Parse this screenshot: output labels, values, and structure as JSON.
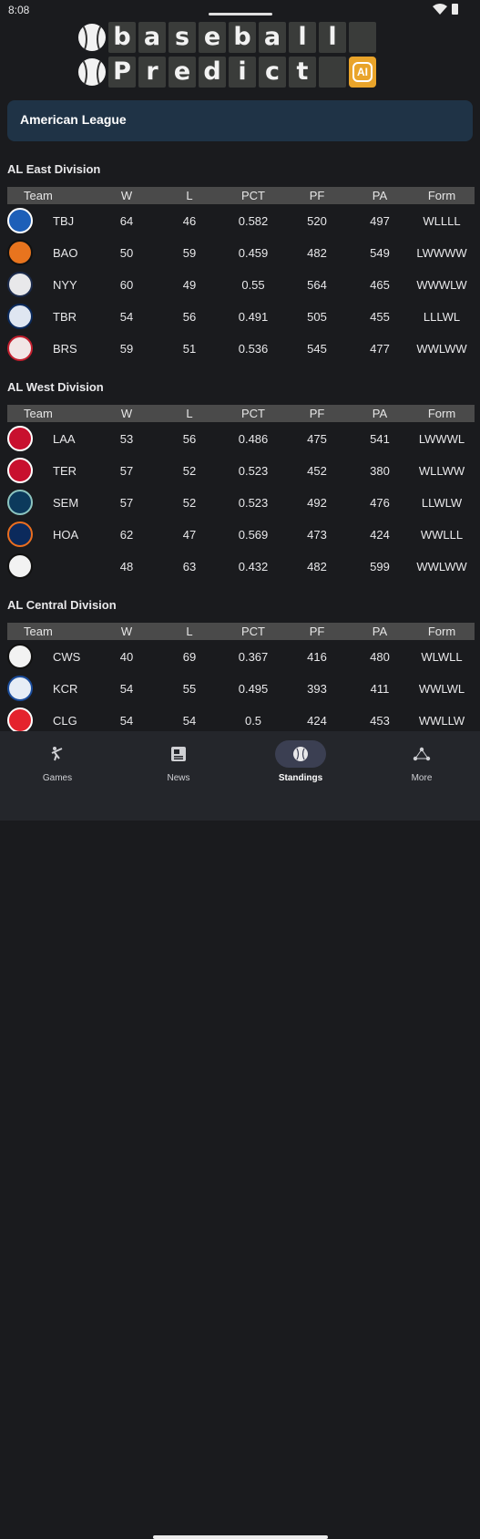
{
  "status": {
    "time": "8:08"
  },
  "logo": {
    "row1": [
      "b",
      "a",
      "s",
      "e",
      "b",
      "a",
      "l",
      "l"
    ],
    "row2": [
      "P",
      "r",
      "e",
      "d",
      "i",
      "c",
      "t"
    ],
    "ai_badge": "AI",
    "badge_color": "#e9a42a"
  },
  "league": {
    "label": "American League",
    "card_color": "#1f3346"
  },
  "columns": [
    "Team",
    "W",
    "L",
    "PCT",
    "PF",
    "PA",
    "Form"
  ],
  "divisions": [
    {
      "title": "AL East Division",
      "teams": [
        {
          "abbr": "TBJ",
          "w": "64",
          "l": "46",
          "pct": "0.582",
          "pf": "520",
          "pa": "497",
          "form": "WLLLL",
          "icon": "blue-jays-logo-icon",
          "logo_bg": "#1d5fb8",
          "logo_fg": "#ffffff"
        },
        {
          "abbr": "BAO",
          "w": "50",
          "l": "59",
          "pct": "0.459",
          "pf": "482",
          "pa": "549",
          "form": "LWWWW",
          "icon": "orioles-logo-icon",
          "logo_bg": "#e8741e",
          "logo_fg": "#111111"
        },
        {
          "abbr": "NYY",
          "w": "60",
          "l": "49",
          "pct": "0.55",
          "pf": "564",
          "pa": "465",
          "form": "WWWLW",
          "icon": "yankees-logo-icon",
          "logo_bg": "#e8e8ea",
          "logo_fg": "#1b2a4a"
        },
        {
          "abbr": "TBR",
          "w": "54",
          "l": "56",
          "pct": "0.491",
          "pf": "505",
          "pa": "455",
          "form": "LLLWL",
          "icon": "rays-logo-icon",
          "logo_bg": "#dfe6f1",
          "logo_fg": "#0b2a5c"
        },
        {
          "abbr": "BRS",
          "w": "59",
          "l": "51",
          "pct": "0.536",
          "pf": "545",
          "pa": "477",
          "form": "WWLWW",
          "icon": "red-sox-logo-icon",
          "logo_bg": "#f1e6e6",
          "logo_fg": "#c21f2e"
        }
      ]
    },
    {
      "title": "AL West Division",
      "teams": [
        {
          "abbr": "LAA",
          "w": "53",
          "l": "56",
          "pct": "0.486",
          "pf": "475",
          "pa": "541",
          "form": "LWWWL",
          "icon": "angels-logo-icon",
          "logo_bg": "#c8102e",
          "logo_fg": "#ffffff"
        },
        {
          "abbr": "TER",
          "w": "57",
          "l": "52",
          "pct": "0.523",
          "pf": "452",
          "pa": "380",
          "form": "WLLWW",
          "icon": "rangers-logo-icon",
          "logo_bg": "#c8102e",
          "logo_fg": "#ffffff"
        },
        {
          "abbr": "SEM",
          "w": "57",
          "l": "52",
          "pct": "0.523",
          "pf": "492",
          "pa": "476",
          "form": "LLWLW",
          "icon": "mariners-logo-icon",
          "logo_bg": "#0c3a5c",
          "logo_fg": "#8cc5c0"
        },
        {
          "abbr": "HOA",
          "w": "62",
          "l": "47",
          "pct": "0.569",
          "pf": "473",
          "pa": "424",
          "form": "WWLLL",
          "icon": "astros-logo-icon",
          "logo_bg": "#0b2a5c",
          "logo_fg": "#eb6e1f"
        },
        {
          "abbr": "",
          "w": "48",
          "l": "63",
          "pct": "0.432",
          "pf": "482",
          "pa": "599",
          "form": "WWLWW",
          "icon": "athletics-logo-icon",
          "logo_bg": "#f2f2f2",
          "logo_fg": "#111111"
        }
      ]
    },
    {
      "title": "AL Central Division",
      "teams": [
        {
          "abbr": "CWS",
          "w": "40",
          "l": "69",
          "pct": "0.367",
          "pf": "416",
          "pa": "480",
          "form": "WLWLL",
          "icon": "white-sox-logo-icon",
          "logo_bg": "#f2f2f2",
          "logo_fg": "#111111"
        },
        {
          "abbr": "KCR",
          "w": "54",
          "l": "55",
          "pct": "0.495",
          "pf": "393",
          "pa": "411",
          "form": "WWLWL",
          "icon": "royals-logo-icon",
          "logo_bg": "#e6edf6",
          "logo_fg": "#1a4c9b"
        },
        {
          "abbr": "CLG",
          "w": "54",
          "l": "54",
          "pct": "0.5",
          "pf": "424",
          "pa": "453",
          "form": "WWLLW",
          "icon": "guardians-logo-icon",
          "logo_bg": "#e4232d",
          "logo_fg": "#ffffff"
        }
      ]
    }
  ],
  "bottom_nav": {
    "items": [
      {
        "label": "Games",
        "icon": "batter-icon"
      },
      {
        "label": "News",
        "icon": "newspaper-icon"
      },
      {
        "label": "Standings",
        "icon": "baseball-icon",
        "active": true
      },
      {
        "label": "More",
        "icon": "more-icon"
      }
    ]
  }
}
